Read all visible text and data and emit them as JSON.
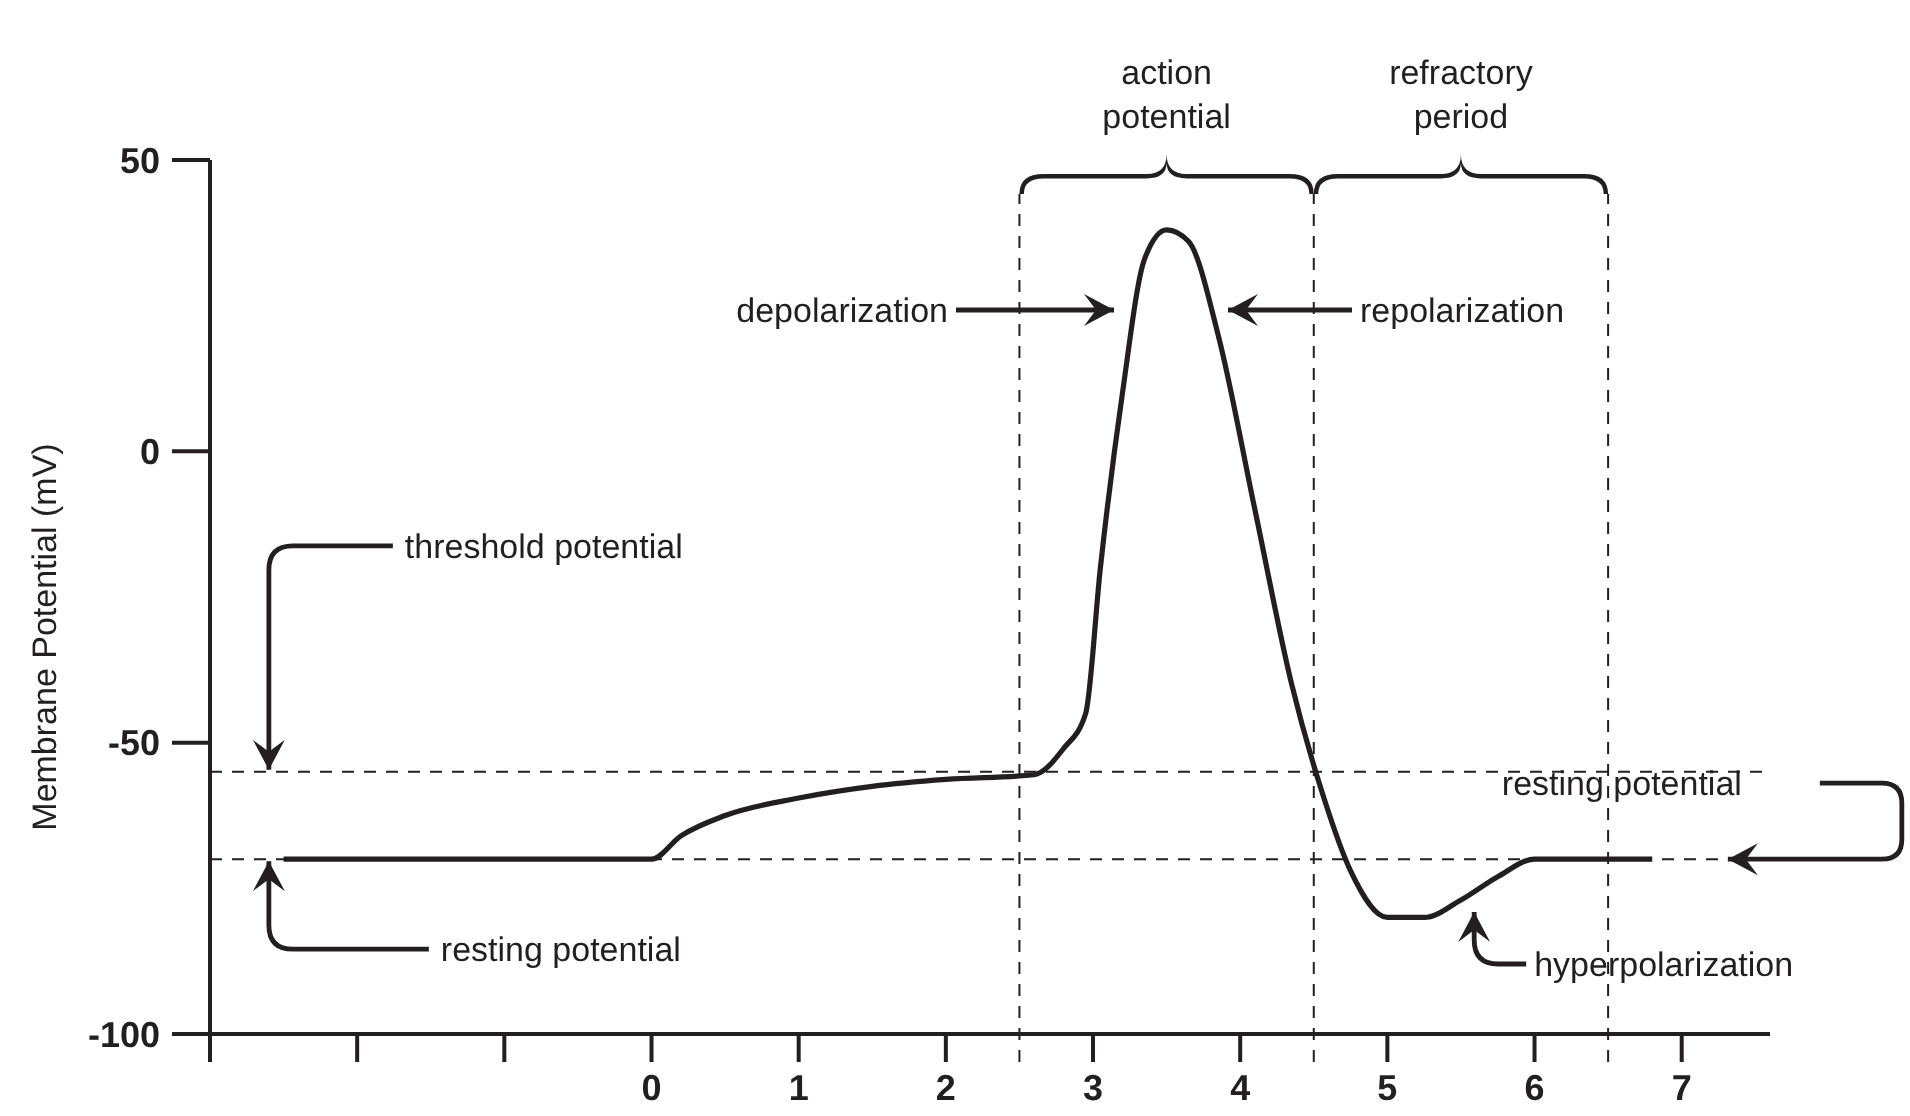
{
  "chart_data": {
    "type": "line",
    "ylabel": "Membrane Potential (mV)",
    "xlim": [
      -3,
      7.6
    ],
    "ylim": [
      -100,
      50
    ],
    "xticks": [
      {
        "value": -3,
        "label": null
      },
      {
        "value": -2,
        "label": null
      },
      {
        "value": -1,
        "label": null
      },
      0,
      1,
      2,
      3,
      4,
      5,
      6,
      7
    ],
    "yticks": [
      -100,
      -50,
      0,
      50
    ],
    "series": [
      {
        "color": "#231f20",
        "x": [
          -2.5,
          0,
          0.2,
          0.5,
          1,
          1.5,
          2,
          2.6,
          2.8,
          2.95,
          3.05,
          3.2,
          3.35,
          3.5,
          3.65,
          3.85,
          4.1,
          4.35,
          4.55,
          4.75,
          5,
          5.25,
          5.5,
          5.75,
          6,
          6.8
        ],
        "values": [
          -70,
          -70,
          -66,
          -62.5,
          -59.5,
          -57.5,
          -56.3,
          -55.5,
          -51,
          -45,
          -20,
          10,
          33,
          38,
          36,
          20,
          -10,
          -40,
          -58,
          -72,
          -80,
          -80,
          -77,
          -73,
          -70,
          -70
        ]
      }
    ],
    "ref_lines": [
      {
        "axis": "y",
        "value": -55,
        "line_style": "dashed"
      },
      {
        "axis": "y",
        "value": -70,
        "line_style": "dashed"
      },
      {
        "axis": "x",
        "value": 2.5,
        "line_style": "dashed"
      },
      {
        "axis": "x",
        "value": 4.5,
        "line_style": "dashed"
      },
      {
        "axis": "x",
        "value": 6.5,
        "line_style": "dashed"
      }
    ],
    "annotations": [
      {
        "text": "threshold potential",
        "x": -2.6,
        "y": -55
      },
      {
        "text": "resting potential",
        "x": -2.6,
        "y": -70
      },
      "depolarization",
      "repolarization",
      {
        "text": "hyperpolarization",
        "x": 5.59,
        "y": -77
      },
      {
        "text": "resting potential",
        "x": 7.3,
        "y": -70
      },
      "action potential",
      "refractory period"
    ]
  }
}
